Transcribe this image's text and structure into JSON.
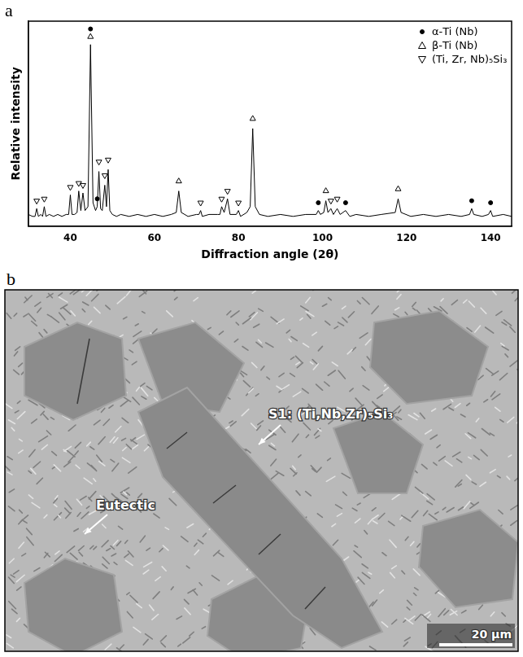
{
  "chart_data": {
    "type": "line",
    "panel": "a",
    "x_label": "Diffraction angle (2θ)",
    "y_label": "Relative intensity",
    "xlim": [
      30,
      145
    ],
    "xticks": [
      40,
      60,
      80,
      100,
      120,
      140
    ],
    "ylim": [
      0,
      105
    ],
    "tick_labels": "x",
    "grid": false,
    "legend": "upper-right",
    "series": [
      {
        "type": "line",
        "color": "#000000",
        "x": [
          30,
          31,
          31.6,
          32,
          32.4,
          33,
          33.4,
          33.8,
          34.2,
          35,
          36,
          37,
          38,
          39,
          39.6,
          40,
          40.4,
          41,
          41.6,
          42,
          42.5,
          43,
          43.5,
          44.2,
          44.8,
          45.4,
          46,
          46.4,
          46.8,
          47.2,
          47.6,
          48.2,
          48.6,
          49,
          49.4,
          50,
          51,
          52,
          54,
          56,
          58,
          60,
          62,
          64,
          65.2,
          65.8,
          66.4,
          68,
          70,
          70.6,
          71,
          71.4,
          73,
          75,
          75.6,
          76,
          76.6,
          77.4,
          78,
          79.5,
          80,
          80.5,
          82,
          82.8,
          83.4,
          84,
          85,
          87,
          90,
          93,
          96,
          98.5,
          99,
          99.5,
          100.3,
          100.8,
          101.3,
          102,
          102.6,
          103.5,
          104.2,
          105.5,
          106.5,
          108,
          111,
          114,
          117.3,
          118,
          118.7,
          121,
          124,
          127,
          130,
          133,
          135,
          135.5,
          136,
          138,
          139.5,
          140,
          140.5,
          143,
          145
        ],
        "values": [
          6,
          5,
          5,
          9,
          5,
          6,
          5,
          10,
          5,
          6,
          5,
          6,
          5,
          6,
          6,
          16,
          6,
          6,
          7,
          18,
          8,
          17,
          8,
          10,
          93,
          12,
          8,
          10,
          28,
          9,
          8,
          21,
          10,
          29,
          8,
          6,
          5,
          6,
          5,
          6,
          5,
          6,
          5,
          6,
          7,
          18,
          7,
          5,
          6,
          6,
          8,
          5,
          6,
          6,
          6,
          10,
          7,
          14,
          6,
          6,
          8,
          5,
          7,
          10,
          50,
          10,
          6,
          5,
          6,
          5,
          6,
          6,
          8,
          6,
          7,
          13,
          7,
          9,
          6,
          9,
          6,
          8,
          5,
          6,
          5,
          6,
          7,
          14,
          7,
          5,
          6,
          5,
          6,
          5,
          6,
          9,
          6,
          5,
          6,
          8,
          5,
          6,
          5
        ]
      },
      {
        "name": "α-Ti (Nb)",
        "type": "scatter",
        "marker": "circle",
        "color": "#000000",
        "x": [
          44.8,
          46.4,
          99,
          105.5,
          135.5,
          140
        ],
        "values": [
          101,
          14,
          12,
          12,
          13,
          12
        ]
      },
      {
        "name": "β-Ti (Nb)",
        "type": "scatter",
        "marker": "open-triangle",
        "color": "#000000",
        "x": [
          44.8,
          65.8,
          83.4,
          100.8,
          118
        ],
        "values": [
          97,
          23,
          55,
          18,
          19
        ]
      },
      {
        "name": "(Ti, Zr, Nb)₅Si₃",
        "type": "scatter",
        "marker": "open-triangle-down",
        "color": "#000000",
        "x": [
          32,
          33.8,
          40,
          42,
          43,
          46.8,
          48.2,
          49,
          71,
          76,
          77.4,
          80,
          102,
          103.5
        ],
        "values": [
          13,
          14,
          20,
          22,
          21,
          33,
          26,
          34,
          12,
          14,
          18,
          12,
          13,
          14
        ]
      }
    ]
  },
  "micrograph": {
    "panel": "b",
    "labels": [
      {
        "text": "S1: (Ti,Nb,Zr)₅Si₃"
      },
      {
        "text": "Eutectic"
      }
    ],
    "scale_bar": "20 μm"
  }
}
